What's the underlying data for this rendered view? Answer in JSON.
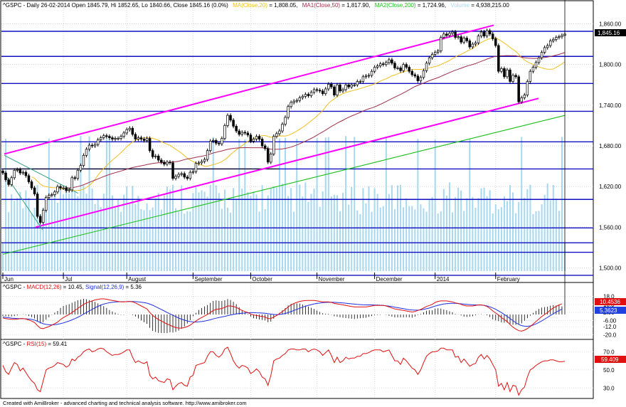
{
  "colors": {
    "price_up": "#ffffff",
    "price_down": "#000000",
    "ma20": "#f0c020",
    "ma50": "#a0304a",
    "ma200": "#20c020",
    "volume": "#a8d8ee",
    "channel": "#ff00ff",
    "hline": "#1010c0",
    "macd": "#e01010",
    "signal": "#2030e0",
    "rsi": "#e01010",
    "axis_tag": "#e01010",
    "signal_tag": "#2040e0"
  },
  "price_panel": {
    "header": {
      "symbol": "^GSPC - Daily 26-02-2014 Open 1845.79, Hi 1852.65, Lo 1840.66, Close 1845.16 (0.0%)",
      "ma20_label": "MA(Close,20)",
      "ma20_value": " = 1,808.05,",
      "ma50_label": "MA1(Close,50)",
      "ma50_value": " = 1,817.90,",
      "ma200_label": "MA2(Close,200)",
      "ma200_value": " = 1,724.96,",
      "volume_label": "Volume",
      "volume_value": " = 4,938,215.00"
    },
    "y_ticks": [
      "1,860.00",
      "1,800.00",
      "1,740.00",
      "1,680.00",
      "1,620.00",
      "1,560.00",
      "1,500.00"
    ],
    "last_price_tag": "1,845.16",
    "month_labels": [
      "Jun",
      "Jul",
      "August",
      "September",
      "October",
      "November",
      "December",
      "2014",
      "February"
    ]
  },
  "macd_panel": {
    "title": "^GSPC - MACD(12,26) = 10.45, Signal(12,26,9) = 5.36",
    "title_prefix": "^GSPC - ",
    "macd_label": "MACD(12,26)",
    "macd_value": " = 10.45, ",
    "signal_label": "Signal(12,26,9)",
    "signal_value": " = 5.36",
    "y_ticks": [
      "18.0",
      "10.0",
      "2.00",
      "-6.00",
      "-12.0",
      "-20.0"
    ],
    "macd_tag": "10.4536",
    "signal_tag": "5.3623"
  },
  "rsi_panel": {
    "title_prefix": "^GSPC - ",
    "rsi_label": "RSI(15)",
    "rsi_value": " = 59.41",
    "y_ticks": [
      "70.0",
      "50.0",
      "30.0"
    ],
    "rsi_tag": "59.409"
  },
  "footer": "Created with AmiBroker - advanced charting and technical analysis software. http://www.amibroker.com",
  "chart_data": {
    "type": "candlestick",
    "symbol": "^GSPC",
    "interval": "Daily",
    "last_bar": {
      "date": "26-02-2014",
      "open": 1845.79,
      "high": 1852.65,
      "low": 1840.66,
      "close": 1845.16,
      "change_pct": 0.0
    },
    "indicators": {
      "MA(Close,20)": 1808.05,
      "MA1(Close,50)": 1817.9,
      "MA2(Close,200)": 1724.96,
      "Volume": 4938215.0,
      "MACD(12,26)": 10.45,
      "Signal(12,26,9)": 5.36,
      "RSI(15)": 59.41
    },
    "price_axis": {
      "ylim": [
        1490,
        1870
      ],
      "ticks": [
        1500,
        1560,
        1620,
        1680,
        1740,
        1800,
        1860
      ]
    },
    "macd_axis": {
      "ylim": [
        -24,
        24
      ],
      "ticks": [
        -20,
        -12,
        -6,
        2,
        10,
        18
      ]
    },
    "rsi_axis": {
      "ylim": [
        20,
        75
      ],
      "ticks": [
        30,
        50,
        70
      ]
    },
    "horizontal_lines": [
      1849,
      1812,
      1772,
      1731,
      1686,
      1646,
      1601,
      1559,
      1537,
      1523,
      1489
    ],
    "month_starts": {
      "Jun": 0,
      "Jul": 21,
      "August": 43,
      "September": 66,
      "October": 86,
      "November": 109,
      "December": 129,
      "2014": 150,
      "February": 171
    },
    "closes": [
      1640,
      1630,
      1623,
      1633,
      1644,
      1645,
      1640,
      1641,
      1636,
      1627,
      1618,
      1609,
      1576,
      1567,
      1585,
      1604,
      1607,
      1608,
      1612,
      1620,
      1618,
      1618,
      1614,
      1615,
      1633,
      1632,
      1644,
      1651,
      1666,
      1675,
      1681,
      1680,
      1682,
      1689,
      1692,
      1695,
      1694,
      1692,
      1690,
      1691,
      1691,
      1694,
      1699,
      1704,
      1706,
      1697,
      1690,
      1692,
      1690,
      1688,
      1691,
      1673,
      1664,
      1665,
      1659,
      1656,
      1653,
      1656,
      1655,
      1632,
      1635,
      1638,
      1639,
      1634,
      1632,
      1641,
      1642,
      1654,
      1655,
      1657,
      1660,
      1673,
      1687,
      1688,
      1684,
      1683,
      1691,
      1710,
      1725,
      1718,
      1709,
      1702,
      1697,
      1700,
      1699,
      1696,
      1687,
      1690,
      1694,
      1690,
      1680,
      1676,
      1656,
      1668,
      1694,
      1698,
      1702,
      1712,
      1722,
      1738,
      1744,
      1746,
      1747,
      1751,
      1753,
      1756,
      1754,
      1759,
      1763,
      1762,
      1761,
      1757,
      1764,
      1771,
      1767,
      1755,
      1770,
      1761,
      1763,
      1770,
      1767,
      1770,
      1770,
      1775,
      1775,
      1782,
      1783,
      1784,
      1790,
      1796,
      1798,
      1801,
      1800,
      1803,
      1807,
      1802,
      1795,
      1795,
      1791,
      1800,
      1796,
      1790,
      1785,
      1783,
      1776,
      1781,
      1791,
      1802,
      1810,
      1815,
      1818,
      1820,
      1840,
      1845,
      1843,
      1846,
      1848,
      1840,
      1841,
      1833,
      1839,
      1835,
      1826,
      1830,
      1832,
      1842,
      1848,
      1842,
      1850,
      1845,
      1838,
      1828,
      1790,
      1794,
      1782,
      1792,
      1775,
      1784,
      1782,
      1745,
      1751,
      1755,
      1775,
      1790,
      1796,
      1803,
      1810,
      1818,
      1825,
      1828,
      1835,
      1837,
      1840,
      1841,
      1843,
      1845
    ],
    "macd": [
      -3.5,
      -4,
      -4.5,
      -4.8,
      -4.8,
      -4.6,
      -4.2,
      -4,
      -4.5,
      -5.5,
      -6.5,
      -8,
      -11,
      -13.5,
      -14,
      -13,
      -12,
      -10.5,
      -9,
      -7.5,
      -5,
      -3,
      -1.5,
      0,
      2,
      4,
      6,
      8,
      10,
      11.5,
      12.5,
      13.5,
      14.5,
      15,
      15.5,
      15.5,
      15.2,
      14.5,
      14,
      13.5,
      13,
      12.5,
      12.5,
      12.8,
      13,
      12.5,
      11.5,
      10,
      8.5,
      7,
      5.5,
      2,
      -1,
      -3,
      -5,
      -6.5,
      -8,
      -9.5,
      -10.5,
      -12,
      -13,
      -13.5,
      -13.5,
      -13,
      -12,
      -10.5,
      -8.5,
      -6.5,
      -4.5,
      -3,
      -1.5,
      0,
      2,
      4,
      5,
      5.5,
      6,
      7,
      8.5,
      8.5,
      8,
      7,
      5.5,
      4,
      3,
      2,
      0.5,
      -0.5,
      -1,
      -1.5,
      -2,
      -2.5,
      -4,
      -4,
      -2.5,
      -1,
      1,
      3,
      5,
      7.5,
      9.5,
      11,
      12,
      13,
      13.5,
      13.8,
      14,
      14,
      14,
      13.5,
      13,
      12.5,
      12.5,
      12.5,
      12,
      11,
      10.5,
      10,
      9.5,
      9,
      8.5,
      8,
      7.5,
      7.5,
      7.5,
      7.5,
      7.5,
      8,
      8.5,
      9,
      9,
      9,
      9,
      8.5,
      7.5,
      6.5,
      5.5,
      5,
      4.5,
      4,
      3.5,
      3,
      2.5,
      3,
      4,
      5,
      6.5,
      8,
      9,
      10,
      12,
      13,
      13.5,
      13.5,
      13.5,
      13,
      12.5,
      11.5,
      11,
      10,
      9,
      8.5,
      8.5,
      8.5,
      9,
      9.5,
      9.5,
      9,
      8,
      6,
      3.5,
      1.5,
      -0.5,
      -3,
      -5,
      -7,
      -10,
      -12.5,
      -14.5,
      -16,
      -16.5,
      -15.5,
      -14,
      -12,
      -9.5,
      -7,
      -4.5,
      -2,
      0,
      2,
      4.5,
      6.5,
      8,
      9.5,
      10.45
    ],
    "signal": [
      -2.5,
      -2.9,
      -3.2,
      -3.6,
      -3.8,
      -4,
      -4.1,
      -4.2,
      -4.3,
      -4.5,
      -4.9,
      -5.5,
      -6.7,
      -8,
      -9.2,
      -9.8,
      -10.2,
      -10.3,
      -10.1,
      -9.7,
      -9.1,
      -8.3,
      -7.4,
      -6.4,
      -5.3,
      -4.1,
      -2.8,
      -1.3,
      0.3,
      2,
      3.6,
      5.1,
      6.7,
      8.1,
      9.3,
      10.3,
      11.1,
      11.7,
      12.1,
      12.4,
      12.6,
      12.7,
      12.7,
      12.8,
      12.9,
      12.9,
      12.8,
      12.5,
      12.2,
      11.8,
      11.3,
      10.3,
      9.2,
      7.8,
      6.4,
      5,
      3.5,
      2,
      0.6,
      -0.8,
      -2.2,
      -3.5,
      -4.6,
      -5.6,
      -6.4,
      -7,
      -7.4,
      -7.5,
      -7.3,
      -7,
      -6.5,
      -5.9,
      -5.2,
      -4.4,
      -3.7,
      -3,
      -2.4,
      -1.8,
      -1.1,
      -0.5,
      0.1,
      0.6,
      1,
      1.3,
      1.5,
      1.7,
      1.8,
      1.8,
      1.7,
      1.6,
      1.4,
      1.2,
      0.8,
      0.4,
      0.1,
      -0.1,
      0,
      0.4,
      1,
      1.9,
      2.9,
      4,
      5.1,
      6.2,
      7.3,
      8.2,
      9.1,
      9.8,
      10.5,
      11,
      11.4,
      11.7,
      12,
      12.1,
      12.2,
      12.1,
      11.9,
      11.7,
      11.5,
      11.2,
      10.9,
      10.6,
      10.3,
      10,
      9.8,
      9.6,
      9.5,
      9.5,
      9.5,
      9.4,
      9.3,
      9.2,
      9,
      8.7,
      8.3,
      7.8,
      7.3,
      6.8,
      6.3,
      5.8,
      5.2,
      4.8,
      4.5,
      4.3,
      4.3,
      4.6,
      5.1,
      5.7,
      6.4,
      7.4,
      8.3,
      9.1,
      9.8,
      10.4,
      10.8,
      11,
      11.1,
      11.1,
      10.9,
      10.6,
      10.3,
      10,
      9.8,
      9.6,
      9.5,
      9.4,
      9.3,
      9.1,
      8.5,
      7.6,
      6.5,
      5.2,
      3.6,
      1.9,
      0.1,
      -1.9,
      -4,
      -6.1,
      -8.1,
      -9.8,
      -11,
      -11.6,
      -11.7,
      -11.3,
      -10.5,
      -9.3,
      -7.9,
      -6.3,
      -4.6,
      -2.8,
      -1,
      0.7,
      2.4,
      3.8,
      5.36
    ],
    "rsi": [
      55,
      48,
      45,
      52,
      58,
      56,
      49,
      52,
      47,
      42,
      38,
      35,
      28,
      26,
      38,
      50,
      52,
      53,
      55,
      58,
      57,
      56,
      53,
      55,
      62,
      60,
      64,
      66,
      70,
      72,
      73,
      70,
      71,
      73,
      74,
      73,
      70,
      68,
      66,
      67,
      67,
      68,
      70,
      72,
      72,
      64,
      58,
      60,
      58,
      57,
      59,
      44,
      40,
      42,
      38,
      37,
      36,
      40,
      39,
      28,
      32,
      35,
      36,
      33,
      32,
      42,
      44,
      55,
      56,
      57,
      58,
      65,
      70,
      70,
      66,
      64,
      67,
      73,
      75,
      68,
      60,
      55,
      52,
      55,
      54,
      52,
      46,
      48,
      51,
      48,
      42,
      40,
      33,
      44,
      60,
      62,
      63,
      66,
      68,
      72,
      73,
      73,
      72,
      72,
      73,
      73,
      70,
      72,
      73,
      72,
      70,
      66,
      69,
      72,
      66,
      58,
      64,
      58,
      60,
      64,
      62,
      63,
      63,
      65,
      65,
      68,
      68,
      69,
      71,
      72,
      72,
      72,
      70,
      71,
      72,
      66,
      60,
      60,
      56,
      63,
      60,
      56,
      52,
      50,
      45,
      50,
      58,
      65,
      68,
      70,
      70,
      71,
      74,
      74,
      72,
      72,
      72,
      64,
      65,
      58,
      62,
      58,
      54,
      56,
      57,
      64,
      67,
      62,
      66,
      62,
      56,
      50,
      32,
      35,
      28,
      36,
      26,
      33,
      32,
      22,
      28,
      31,
      42,
      50,
      52,
      55,
      57,
      59,
      60,
      60,
      61,
      61,
      60,
      59,
      59,
      59.41
    ]
  }
}
